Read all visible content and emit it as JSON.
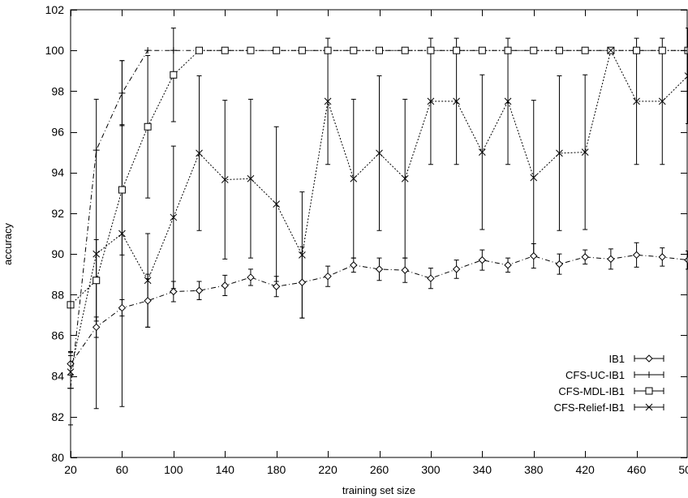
{
  "chart_data": {
    "type": "line",
    "title": "",
    "xlabel": "training set size",
    "ylabel": "accuracy",
    "xlim": [
      20,
      500
    ],
    "ylim": [
      80,
      102
    ],
    "xticks": [
      20,
      60,
      100,
      140,
      180,
      220,
      260,
      300,
      340,
      380,
      420,
      460,
      500
    ],
    "xtick_labels": [
      "20",
      "60",
      "100",
      "140",
      "180",
      "220",
      "260",
      "300",
      "340",
      "380",
      "420",
      "460",
      "500"
    ],
    "yticks": [
      80,
      82,
      84,
      86,
      88,
      90,
      92,
      94,
      96,
      98,
      100,
      102
    ],
    "ytick_labels": [
      "80",
      "82",
      "84",
      "86",
      "88",
      "90",
      "92",
      "94",
      "96",
      "98",
      "100",
      "102"
    ],
    "grid": false,
    "legend_position": "bottom-right",
    "series": [
      {
        "name": "IB1",
        "marker": "diamond",
        "line_style": "dash-dot",
        "x": [
          20,
          40,
          60,
          80,
          100,
          120,
          140,
          160,
          180,
          200,
          220,
          240,
          260,
          280,
          300,
          320,
          340,
          360,
          380,
          400,
          420,
          440,
          460,
          480,
          500
        ],
        "y": [
          84.6,
          86.4,
          87.35,
          87.7,
          88.15,
          88.2,
          88.45,
          88.85,
          88.4,
          88.6,
          88.9,
          89.45,
          89.25,
          89.2,
          88.8,
          89.25,
          89.7,
          89.45,
          89.9,
          89.5,
          89.85,
          89.75,
          89.95,
          89.85,
          89.7
        ],
        "err": [
          0.55,
          0.5,
          0.4,
          1.3,
          0.5,
          0.45,
          0.5,
          0.4,
          0.5,
          1.75,
          0.5,
          0.35,
          0.55,
          0.6,
          0.5,
          0.45,
          0.5,
          0.35,
          0.6,
          0.5,
          0.35,
          0.5,
          0.6,
          0.45,
          0.45
        ]
      },
      {
        "name": "CFS-UC-IB1",
        "marker": "plus",
        "line_style": "dash-dot",
        "x": [
          20,
          40,
          60,
          80,
          100,
          120,
          140,
          160,
          180,
          200,
          220,
          240,
          260,
          280,
          300,
          320,
          340,
          360,
          380,
          400,
          420,
          440,
          460,
          480,
          500
        ],
        "y": [
          83.4,
          95.1,
          97.9,
          100,
          100,
          100,
          100,
          100,
          100,
          100,
          100,
          100,
          100,
          100,
          100,
          100,
          100,
          100,
          100,
          100,
          100,
          100,
          100,
          100,
          100
        ],
        "err": [
          1.8,
          0,
          1.6,
          0,
          0,
          0,
          0,
          0,
          0,
          0,
          0,
          0,
          0,
          0,
          0,
          0,
          0,
          0,
          0,
          0,
          0,
          0,
          0,
          0,
          0
        ]
      },
      {
        "name": "CFS-MDL-IB1",
        "marker": "square",
        "line_style": "dotted",
        "x": [
          20,
          40,
          60,
          80,
          100,
          120,
          140,
          160,
          180,
          200,
          220,
          240,
          260,
          280,
          300,
          320,
          340,
          360,
          380,
          400,
          420,
          440,
          460,
          480,
          500
        ],
        "y": [
          87.5,
          88.7,
          93.15,
          96.25,
          98.8,
          100,
          100,
          100,
          100,
          100,
          100,
          100,
          100,
          100,
          100,
          100,
          100,
          100,
          100,
          100,
          100,
          100,
          100,
          100,
          100
        ],
        "err": [
          0,
          2.0,
          3.2,
          3.5,
          2.3,
          0,
          0,
          0,
          0,
          0,
          0,
          0,
          0,
          0,
          0,
          0,
          0,
          0,
          0,
          0,
          0,
          0,
          0,
          0,
          0
        ]
      },
      {
        "name": "CFS-Relief-IB1",
        "marker": "cross",
        "line_style": "dotted",
        "x": [
          20,
          40,
          60,
          80,
          100,
          120,
          140,
          160,
          180,
          200,
          220,
          240,
          260,
          280,
          300,
          320,
          340,
          360,
          380,
          400,
          420,
          440,
          460,
          480,
          500
        ],
        "y": [
          84.2,
          90.0,
          91.0,
          88.7,
          91.8,
          94.95,
          93.65,
          93.7,
          92.45,
          89.95,
          97.5,
          93.7,
          94.95,
          93.7,
          97.5,
          97.5,
          95.0,
          97.5,
          93.75,
          94.95,
          95.0,
          100,
          97.5,
          97.5,
          98.75
        ],
        "err": [
          0.8,
          7.6,
          8.5,
          2.3,
          3.5,
          3.8,
          3.9,
          3.9,
          3.8,
          3.1,
          3.1,
          3.9,
          3.8,
          3.9,
          3.1,
          3.1,
          3.8,
          3.1,
          3.8,
          3.8,
          3.8,
          0,
          3.1,
          3.1,
          2.35
        ]
      }
    ]
  }
}
